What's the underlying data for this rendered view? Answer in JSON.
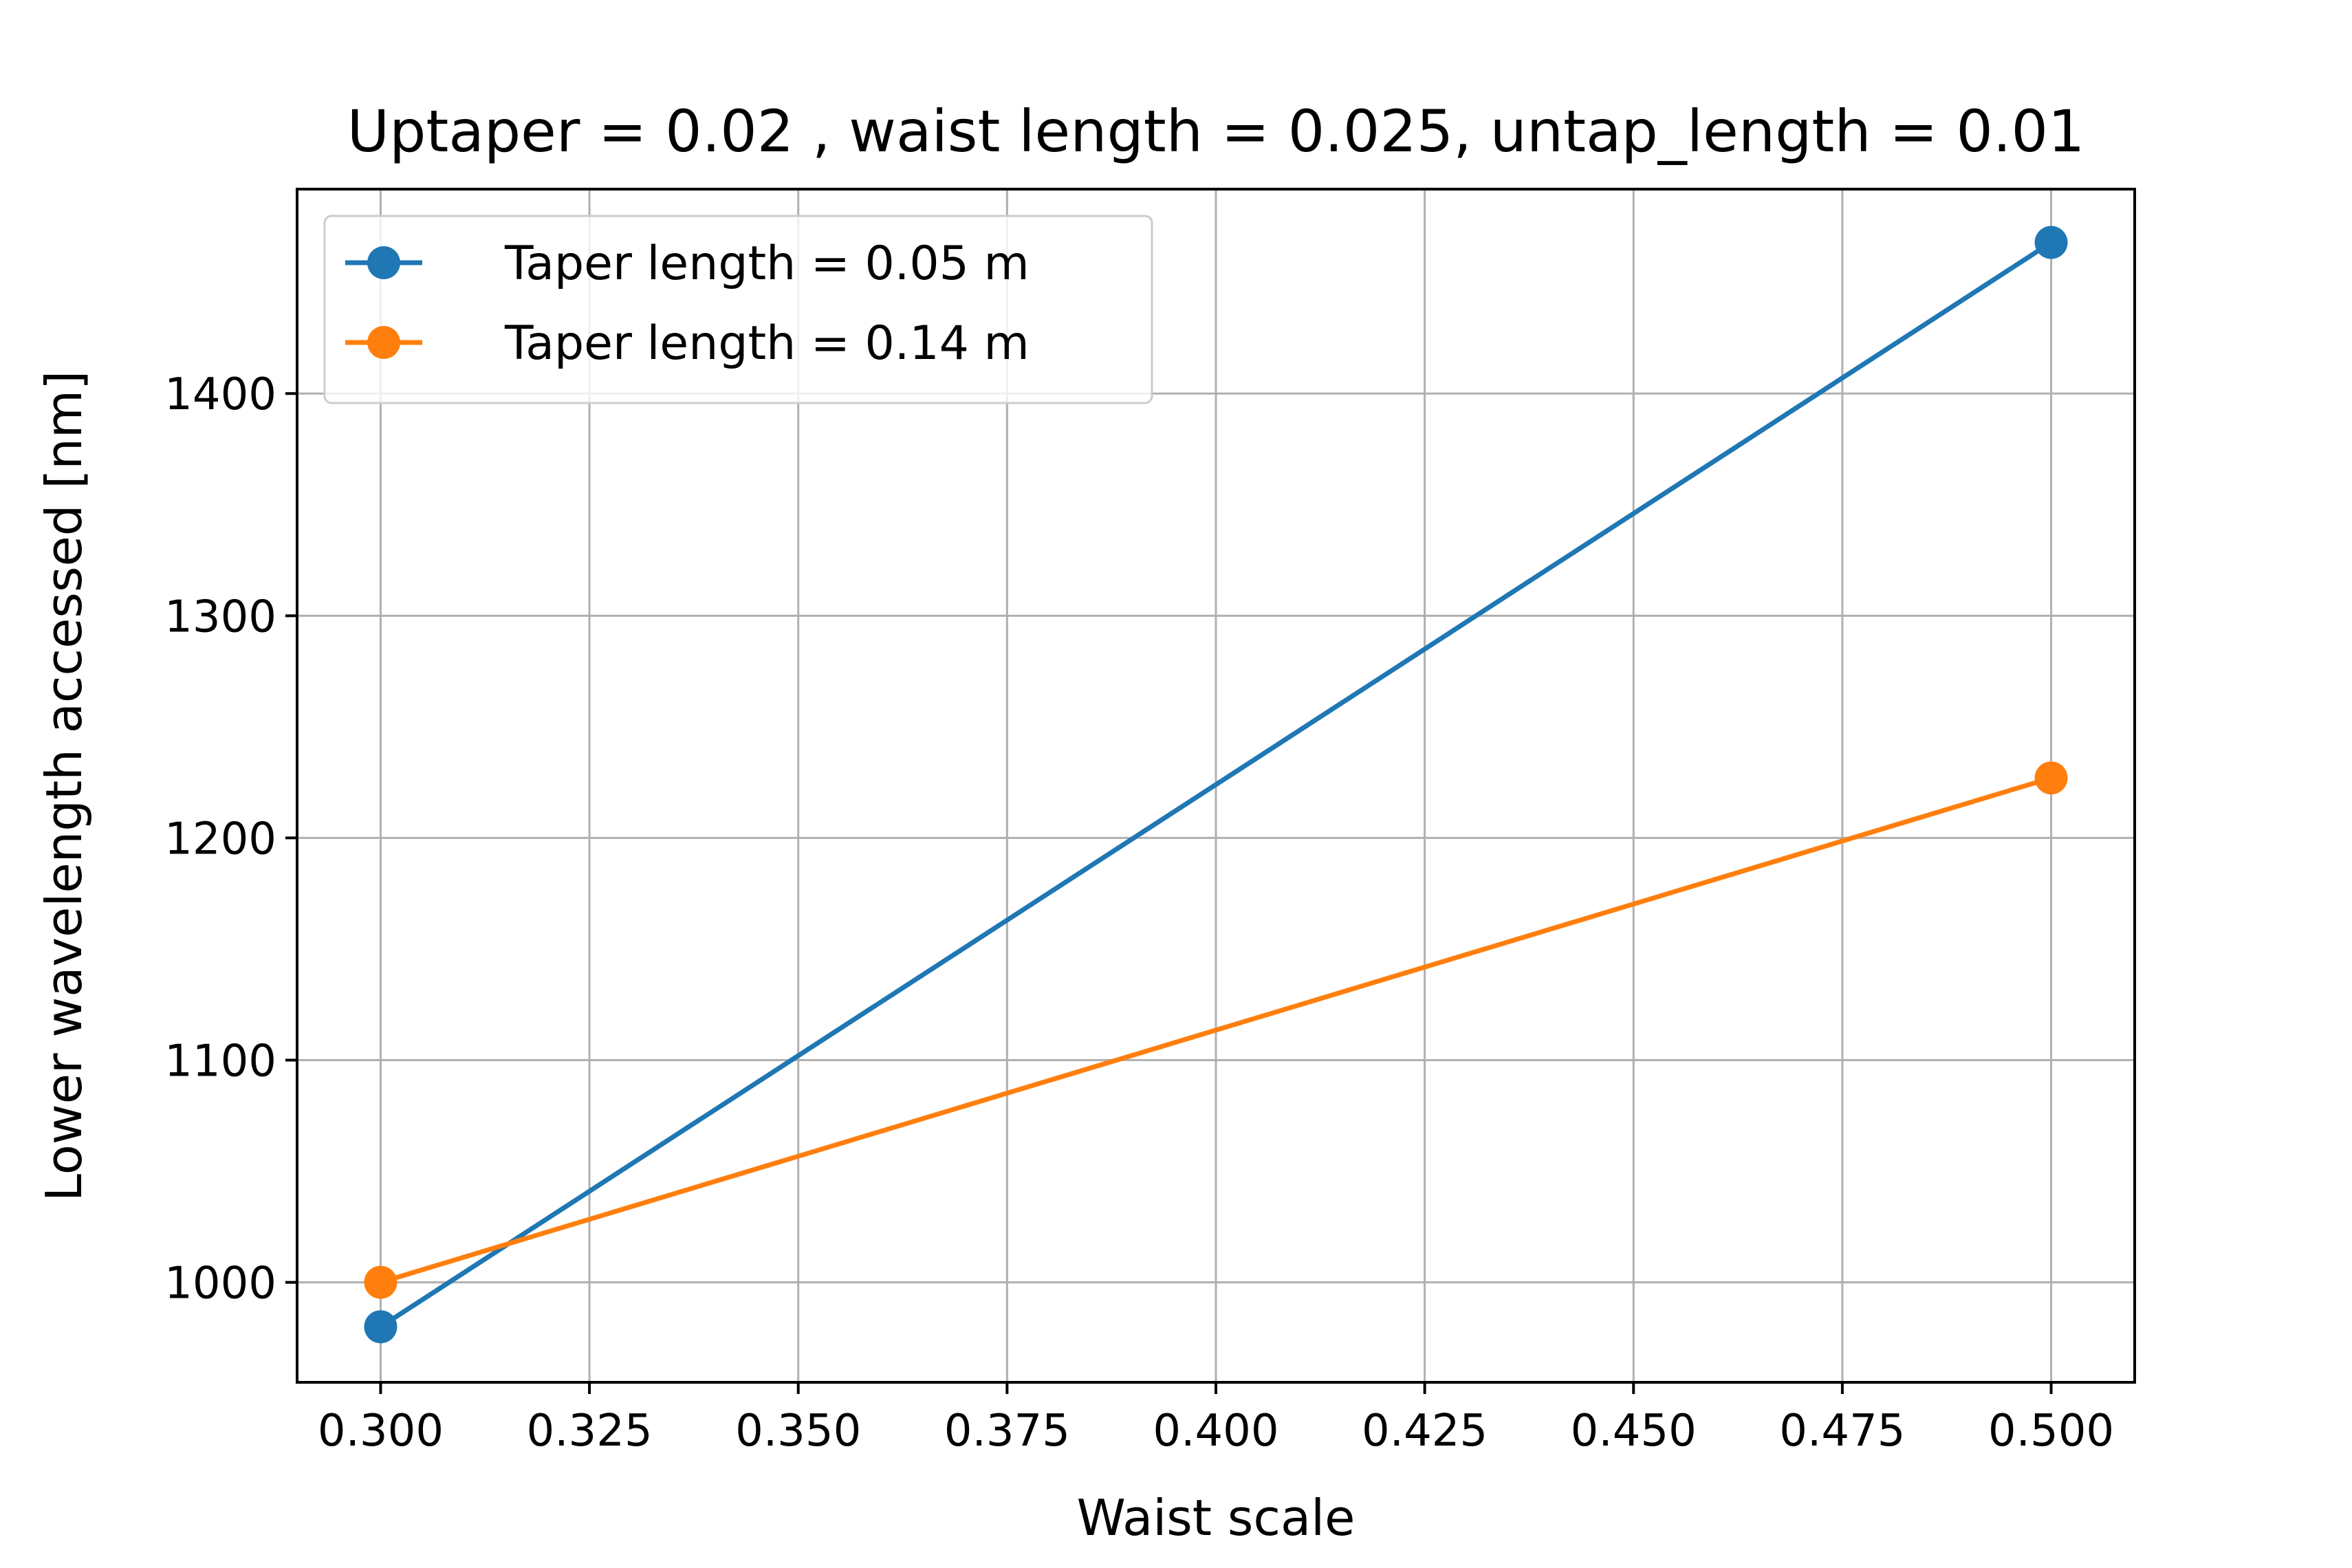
{
  "chart_data": {
    "type": "line",
    "title": "Uptaper = 0.02 , waist length = 0.025, untap_length = 0.01",
    "xlabel": "Waist scale",
    "ylabel": "Lower wavelength accessed [nm]",
    "xlim": [
      0.29,
      0.51
    ],
    "ylim": [
      955,
      1492
    ],
    "xticks": [
      0.3,
      0.325,
      0.35,
      0.375,
      0.4,
      0.425,
      0.45,
      0.475,
      0.5
    ],
    "xtick_labels": [
      "0.300",
      "0.325",
      "0.350",
      "0.375",
      "0.400",
      "0.425",
      "0.450",
      "0.475",
      "0.500"
    ],
    "yticks": [
      1000,
      1100,
      1200,
      1300,
      1400
    ],
    "ytick_labels": [
      "1000",
      "1100",
      "1200",
      "1300",
      "1400"
    ],
    "grid": true,
    "legend_position": "upper-left",
    "x": [
      0.3,
      0.5
    ],
    "series": [
      {
        "name": "Taper length = 0.05 m",
        "values": [
          980,
          1468
        ],
        "color": "#1f77b4"
      },
      {
        "name": "Taper length = 0.14 m",
        "values": [
          1000,
          1227
        ],
        "color": "#ff7f0e"
      }
    ]
  }
}
